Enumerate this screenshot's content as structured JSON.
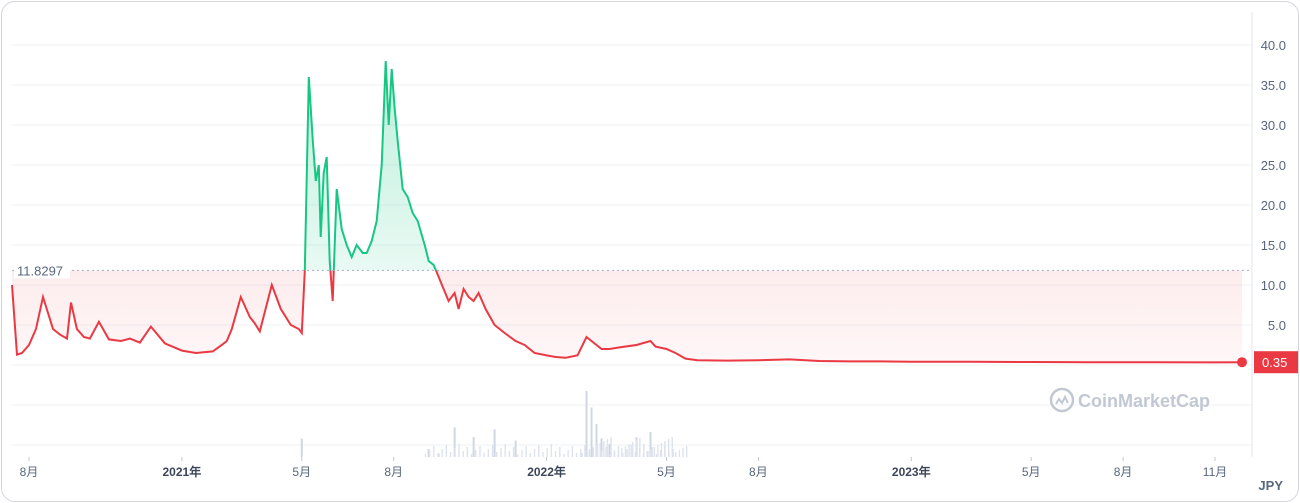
{
  "chart_data": {
    "type": "area",
    "currency": "JPY",
    "reference_label": "11.8297",
    "reference_value": 11.8297,
    "last_value_label": "0.35",
    "last_value": 0.35,
    "ylim": [
      -10,
      42
    ],
    "y_ticks": [
      5,
      10,
      15,
      20,
      25,
      30,
      35,
      40
    ],
    "y_tick_labels": [
      "5.0",
      "10.0",
      "15.0",
      "20.0",
      "25.0",
      "30.0",
      "35.0",
      "40.0"
    ],
    "x_range": [
      "2020-07-15",
      "2023-11-28"
    ],
    "x_ticks": [
      {
        "date": "2020-08-01",
        "label": "8月",
        "major": false
      },
      {
        "date": "2021-01-01",
        "label": "2021年",
        "major": true
      },
      {
        "date": "2021-05-01",
        "label": "5月",
        "major": false
      },
      {
        "date": "2021-08-01",
        "label": "8月",
        "major": false
      },
      {
        "date": "2022-01-01",
        "label": "2022年",
        "major": true
      },
      {
        "date": "2022-05-01",
        "label": "5月",
        "major": false
      },
      {
        "date": "2022-08-01",
        "label": "8月",
        "major": false
      },
      {
        "date": "2023-01-01",
        "label": "2023年",
        "major": true
      },
      {
        "date": "2023-05-01",
        "label": "5月",
        "major": false
      },
      {
        "date": "2023-08-01",
        "label": "8月",
        "major": false
      },
      {
        "date": "2023-11-01",
        "label": "11月",
        "major": false
      }
    ],
    "watermark": "CoinMarketCap",
    "colors": {
      "up": "#16c784",
      "down": "#ea3943",
      "grid": "#eff2f5",
      "text": "#58667e"
    },
    "series": [
      {
        "x": [
          "2020-07-15",
          "2020-07-20",
          "2020-07-25",
          "2020-08-01",
          "2020-08-08",
          "2020-08-15",
          "2020-08-20",
          "2020-08-25",
          "2020-09-01",
          "2020-09-08",
          "2020-09-12",
          "2020-09-18",
          "2020-09-25",
          "2020-10-01",
          "2020-10-10",
          "2020-10-20",
          "2020-11-01",
          "2020-11-10",
          "2020-11-20",
          "2020-12-01",
          "2020-12-15",
          "2021-01-01",
          "2021-01-15",
          "2021-02-01",
          "2021-02-10",
          "2021-02-15",
          "2021-02-20",
          "2021-03-01",
          "2021-03-10",
          "2021-03-15",
          "2021-03-20",
          "2021-04-01",
          "2021-04-10",
          "2021-04-20",
          "2021-04-28",
          "2021-05-01",
          "2021-05-04",
          "2021-05-08",
          "2021-05-12",
          "2021-05-15",
          "2021-05-18",
          "2021-05-20",
          "2021-05-23",
          "2021-05-26",
          "2021-05-29",
          "2021-06-01",
          "2021-06-05",
          "2021-06-10",
          "2021-06-15",
          "2021-06-20",
          "2021-06-25",
          "2021-07-01",
          "2021-07-05",
          "2021-07-10",
          "2021-07-15",
          "2021-07-20",
          "2021-07-24",
          "2021-07-27",
          "2021-07-30",
          "2021-08-02",
          "2021-08-05",
          "2021-08-10",
          "2021-08-15",
          "2021-08-20",
          "2021-08-25",
          "2021-09-01",
          "2021-09-05",
          "2021-09-10",
          "2021-09-15",
          "2021-09-20",
          "2021-09-25",
          "2021-10-01",
          "2021-10-05",
          "2021-10-10",
          "2021-10-15",
          "2021-10-20",
          "2021-10-25",
          "2021-11-01",
          "2021-11-10",
          "2021-11-20",
          "2021-12-01",
          "2021-12-10",
          "2021-12-20",
          "2022-01-01",
          "2022-01-10",
          "2022-01-20",
          "2022-02-01",
          "2022-02-10",
          "2022-02-20",
          "2022-02-25",
          "2022-03-05",
          "2022-03-15",
          "2022-04-01",
          "2022-04-15",
          "2022-04-20",
          "2022-05-01",
          "2022-05-10",
          "2022-05-20",
          "2022-06-01",
          "2022-07-01",
          "2022-08-01",
          "2022-09-01",
          "2022-10-01",
          "2022-11-01",
          "2022-12-01",
          "2023-01-01",
          "2023-03-01",
          "2023-05-01",
          "2023-07-01",
          "2023-09-01",
          "2023-11-01",
          "2023-11-28"
        ],
        "y": [
          10.0,
          1.3,
          1.5,
          2.5,
          4.5,
          8.5,
          6.5,
          4.5,
          3.8,
          3.3,
          7.8,
          4.5,
          3.5,
          3.3,
          5.4,
          3.2,
          3.0,
          3.3,
          2.8,
          4.8,
          2.7,
          1.8,
          1.5,
          1.7,
          2.5,
          3.0,
          4.5,
          8.5,
          6.0,
          5.2,
          4.2,
          10.0,
          7.0,
          5.0,
          4.5,
          4.0,
          11.8,
          36.0,
          28.0,
          23.0,
          25.0,
          16.0,
          24.0,
          26.0,
          13.0,
          8.0,
          22.0,
          17.0,
          15.0,
          13.5,
          15.0,
          14.0,
          14.0,
          15.5,
          18.0,
          25.0,
          38.0,
          30.0,
          37.0,
          32.0,
          28.0,
          22.0,
          21.0,
          19.0,
          18.0,
          15.0,
          13.0,
          12.5,
          11.0,
          9.5,
          8.0,
          9.0,
          7.0,
          9.5,
          8.5,
          8.0,
          9.0,
          7.0,
          5.0,
          4.0,
          3.0,
          2.5,
          1.5,
          1.2,
          1.0,
          0.9,
          1.2,
          3.5,
          2.5,
          2.0,
          2.0,
          2.2,
          2.5,
          3.0,
          2.3,
          2.0,
          1.5,
          0.8,
          0.6,
          0.55,
          0.6,
          0.7,
          0.5,
          0.45,
          0.45,
          0.4,
          0.4,
          0.38,
          0.35,
          0.35,
          0.33,
          0.35
        ]
      }
    ],
    "volume": {
      "x": [
        "2021-05-01",
        "2021-09-05",
        "2021-09-15",
        "2021-10-01",
        "2021-10-20",
        "2021-11-10",
        "2021-12-01",
        "2022-02-10",
        "2022-02-15",
        "2022-02-20",
        "2022-02-25",
        "2022-03-05",
        "2022-04-01",
        "2022-04-15"
      ],
      "y": [
        0.28,
        0.12,
        0.05,
        0.45,
        0.3,
        0.42,
        0.25,
        1.0,
        0.75,
        0.5,
        0.28,
        0.2,
        0.3,
        0.38
      ]
    }
  }
}
